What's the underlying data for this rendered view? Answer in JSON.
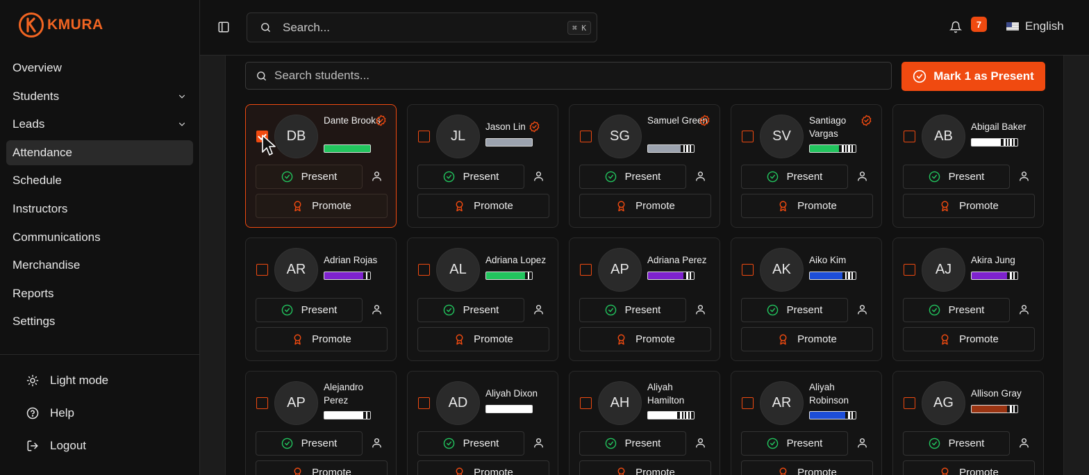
{
  "app": {
    "logo_text": "KMURA"
  },
  "sidebar": {
    "items": [
      {
        "label": "Overview",
        "icon": "none",
        "chevron": false,
        "active": false
      },
      {
        "label": "Students",
        "chevron": true,
        "active": false
      },
      {
        "label": "Leads",
        "chevron": true,
        "active": false
      },
      {
        "label": "Attendance",
        "chevron": false,
        "active": true
      },
      {
        "label": "Schedule",
        "chevron": false,
        "active": false
      },
      {
        "label": "Instructors",
        "chevron": false,
        "active": false
      },
      {
        "label": "Communications",
        "chevron": false,
        "active": false
      },
      {
        "label": "Merchandise",
        "chevron": false,
        "active": false
      },
      {
        "label": "Reports",
        "chevron": false,
        "active": false
      },
      {
        "label": "Settings",
        "chevron": false,
        "active": false
      }
    ],
    "bottom": [
      {
        "label": "Light mode",
        "icon": "sun-icon"
      },
      {
        "label": "Help",
        "icon": "help-circle-icon"
      },
      {
        "label": "Logout",
        "icon": "logout-icon"
      }
    ]
  },
  "topbar": {
    "search_placeholder": "Search...",
    "shortcut": "⌘ K",
    "notification_count": "7",
    "language": "English"
  },
  "attendance": {
    "search_placeholder": "Search students...",
    "mark_button": "Mark 1 as Present",
    "present_label": "Present",
    "promote_label": "Promote",
    "students": [
      {
        "initials": "DB",
        "name": "Dante Brooks",
        "lines": 2,
        "verified": true,
        "selected": true,
        "belt_color": "#22c55e",
        "stripes": 0,
        "tip": false
      },
      {
        "initials": "JL",
        "name": "Jason Lin",
        "lines": 1,
        "verified": true,
        "selected": false,
        "belt_color": "#9ca3af",
        "stripes": 0,
        "tip": false
      },
      {
        "initials": "SG",
        "name": "Samuel Green",
        "lines": 2,
        "verified": true,
        "selected": false,
        "belt_color": "#9ca3af",
        "stripes": 3,
        "tip": true
      },
      {
        "initials": "SV",
        "name": "Santiago Vargas",
        "lines": 2,
        "verified": true,
        "selected": false,
        "belt_color": "#22c55e",
        "stripes": 4,
        "tip": true
      },
      {
        "initials": "AB",
        "name": "Abigail Baker",
        "lines": 1,
        "verified": false,
        "selected": false,
        "belt_color": "#ffffff",
        "stripes": 4,
        "tip": true
      },
      {
        "initials": "AR",
        "name": "Adrian Rojas",
        "lines": 1,
        "verified": false,
        "selected": false,
        "belt_color": "#7e22ce",
        "stripes": 1,
        "tip": true
      },
      {
        "initials": "AL",
        "name": "Adriana Lopez",
        "lines": 1,
        "verified": false,
        "selected": false,
        "belt_color": "#22c55e",
        "stripes": 1,
        "tip": true
      },
      {
        "initials": "AP",
        "name": "Adriana Perez",
        "lines": 1,
        "verified": false,
        "selected": false,
        "belt_color": "#7e22ce",
        "stripes": 2,
        "tip": true
      },
      {
        "initials": "AK",
        "name": "Aiko Kim",
        "lines": 1,
        "verified": false,
        "selected": false,
        "belt_color": "#1d4ed8",
        "stripes": 3,
        "tip": true
      },
      {
        "initials": "AJ",
        "name": "Akira Jung",
        "lines": 1,
        "verified": false,
        "selected": false,
        "belt_color": "#7e22ce",
        "stripes": 2,
        "tip": true
      },
      {
        "initials": "AP",
        "name": "Alejandro Perez",
        "lines": 2,
        "verified": false,
        "selected": false,
        "belt_color": "#ffffff",
        "stripes": 1,
        "tip": true
      },
      {
        "initials": "AD",
        "name": "Aliyah Dixon",
        "lines": 1,
        "verified": false,
        "selected": false,
        "belt_color": "#ffffff",
        "stripes": 0,
        "tip": false
      },
      {
        "initials": "AH",
        "name": "Aliyah Hamilton",
        "lines": 2,
        "verified": false,
        "selected": false,
        "belt_color": "#ffffff",
        "stripes": 4,
        "tip": true
      },
      {
        "initials": "AR",
        "name": "Aliyah Robinson",
        "lines": 2,
        "verified": false,
        "selected": false,
        "belt_color": "#1d4ed8",
        "stripes": 2,
        "tip": true
      },
      {
        "initials": "AG",
        "name": "Allison Gray",
        "lines": 1,
        "verified": false,
        "selected": false,
        "belt_color": "#9a3412",
        "stripes": 2,
        "tip": true
      }
    ]
  }
}
